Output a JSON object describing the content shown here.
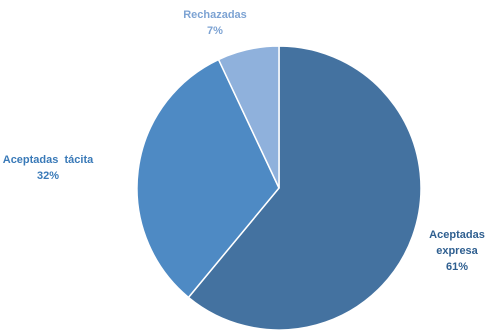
{
  "chart_data": {
    "type": "pie",
    "slices": [
      {
        "label": "Aceptadas expresa",
        "label_lines": [
          "Aceptadas",
          "expresa"
        ],
        "value": 61,
        "display": "61%",
        "color": "#4472a0",
        "label_color": "#2f5f90"
      },
      {
        "label": "Aceptadas tácita",
        "label_lines": [
          "Aceptadas  tácita"
        ],
        "value": 32,
        "display": "32%",
        "color": "#4e8ac4",
        "label_color": "#3a7ab8"
      },
      {
        "label": "Rechazadas",
        "label_lines": [
          "Rechazadas"
        ],
        "value": 7,
        "display": "7%",
        "color": "#8fb1dc",
        "label_color": "#7da3d3"
      }
    ],
    "start": "12 o'clock",
    "direction": "clockwise",
    "legend": "none"
  }
}
